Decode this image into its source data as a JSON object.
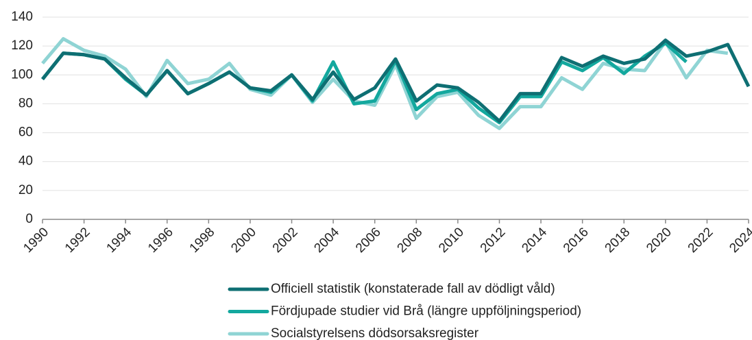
{
  "chart_data": {
    "type": "line",
    "x": [
      1990,
      1991,
      1992,
      1993,
      1994,
      1995,
      1996,
      1997,
      1998,
      1999,
      2000,
      2001,
      2002,
      2003,
      2004,
      2005,
      2006,
      2007,
      2008,
      2009,
      2010,
      2011,
      2012,
      2013,
      2014,
      2015,
      2016,
      2017,
      2018,
      2019,
      2020,
      2021,
      2022,
      2023,
      2024
    ],
    "series": [
      {
        "name": "Officiell statistik (konstaterade fall av dödligt våld)",
        "color": "#0e6f73",
        "values": [
          97,
          115,
          114,
          111,
          98,
          86,
          103,
          87,
          94,
          102,
          91,
          89,
          100,
          83,
          102,
          83,
          91,
          111,
          82,
          93,
          91,
          81,
          68,
          87,
          87,
          112,
          106,
          113,
          108,
          111,
          124,
          113,
          116,
          121,
          92
        ]
      },
      {
        "name": "Fördjupade studier vid Brå (längre uppföljningsperiod)",
        "color": "#13a89e",
        "values": [
          97,
          115,
          114,
          111,
          97,
          86,
          103,
          87,
          94,
          102,
          91,
          88,
          100,
          82,
          109,
          80,
          82,
          110,
          76,
          87,
          90,
          77,
          67,
          85,
          85,
          109,
          103,
          112,
          101,
          113,
          122,
          109,
          null,
          null,
          null
        ]
      },
      {
        "name": "Socialstyrelsens dödsorsaksregister",
        "color": "#8fd4d4",
        "values": [
          108,
          125,
          117,
          113,
          104,
          85,
          110,
          94,
          97,
          108,
          90,
          86,
          100,
          81,
          97,
          82,
          79,
          107,
          70,
          85,
          88,
          72,
          63,
          78,
          78,
          98,
          90,
          108,
          104,
          103,
          123,
          98,
          117,
          115,
          null
        ]
      }
    ],
    "xlim": [
      1990,
      2024
    ],
    "xticks": [
      1990,
      1992,
      1994,
      1996,
      1998,
      2000,
      2002,
      2004,
      2006,
      2008,
      2010,
      2012,
      2014,
      2016,
      2018,
      2020,
      2022,
      2024
    ],
    "ylim": [
      0,
      140
    ],
    "yticks": [
      0,
      20,
      40,
      60,
      80,
      100,
      120,
      140
    ],
    "grid": true,
    "legend": "bottom"
  }
}
